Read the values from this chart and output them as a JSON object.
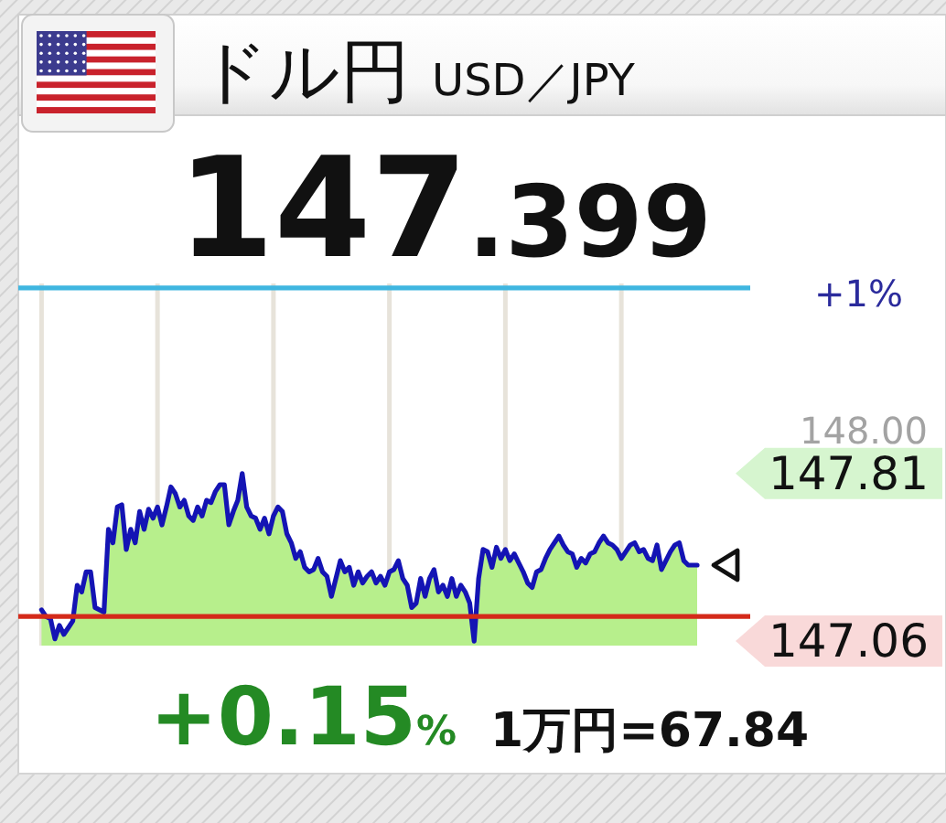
{
  "chart_data": {
    "type": "area",
    "title": "ドル円",
    "subtitle": "USD／JPY",
    "categories": [
      null,
      null,
      null,
      null,
      null,
      null,
      null,
      null,
      null,
      null,
      null,
      null,
      null,
      null,
      null,
      null,
      null,
      null,
      null,
      null,
      null,
      null,
      null,
      null,
      null,
      null,
      null,
      null,
      null,
      null,
      null,
      null,
      null,
      null,
      null,
      null,
      null,
      null,
      null,
      null,
      null,
      null,
      null,
      null,
      null,
      null,
      null,
      null,
      null,
      null,
      null,
      null,
      null,
      null,
      null,
      null,
      null,
      null,
      null,
      null,
      null,
      null,
      null,
      null,
      null,
      null,
      null,
      null,
      null,
      null,
      null,
      null,
      null,
      null,
      null,
      null,
      null,
      null,
      null,
      null,
      null,
      null,
      null,
      null,
      null,
      null,
      null,
      null,
      null,
      null,
      null,
      null,
      null,
      null,
      null,
      null,
      null,
      null,
      null,
      null,
      null,
      null,
      null,
      null,
      null,
      null,
      null,
      null,
      null,
      null,
      null,
      null,
      null,
      null,
      null,
      null,
      null,
      null,
      null,
      null,
      null,
      null,
      null,
      null,
      null,
      null,
      null,
      null,
      null,
      null,
      null,
      null,
      null,
      null,
      null,
      null,
      null,
      null,
      null,
      null,
      null,
      null,
      null,
      null,
      null,
      null,
      null,
      null
    ],
    "series": [
      {
        "color": "#b7ef8c",
        "values": [
          147.2,
          147.17,
          147.16,
          147.07,
          147.13,
          147.09,
          147.12,
          147.15,
          147.31,
          147.28,
          147.37,
          147.37,
          147.21,
          147.2,
          147.19,
          147.56,
          147.5,
          147.66,
          147.67,
          147.47,
          147.56,
          147.5,
          147.64,
          147.56,
          147.65,
          147.61,
          147.66,
          147.58,
          147.66,
          147.75,
          147.72,
          147.66,
          147.69,
          147.62,
          147.6,
          147.66,
          147.62,
          147.69,
          147.68,
          147.73,
          147.76,
          147.76,
          147.58,
          147.64,
          147.69,
          147.81,
          147.66,
          147.62,
          147.61,
          147.56,
          147.61,
          147.54,
          147.62,
          147.66,
          147.64,
          147.54,
          147.5,
          147.43,
          147.46,
          147.39,
          147.37,
          147.38,
          147.43,
          147.37,
          147.35,
          147.26,
          147.34,
          147.42,
          147.37,
          147.39,
          147.31,
          147.37,
          147.32,
          147.35,
          147.37,
          147.32,
          147.35,
          147.31,
          147.37,
          147.38,
          147.42,
          147.34,
          147.31,
          147.21,
          147.23,
          147.34,
          147.26,
          147.34,
          147.38,
          147.28,
          147.31,
          147.26,
          147.34,
          147.26,
          147.31,
          147.28,
          147.23,
          147.06,
          147.34,
          147.47,
          147.46,
          147.39,
          147.48,
          147.43,
          147.47,
          147.42,
          147.45,
          147.41,
          147.37,
          147.32,
          147.3,
          147.37,
          147.38,
          147.43,
          147.47,
          147.5,
          147.53,
          147.49,
          147.46,
          147.45,
          147.39,
          147.43,
          147.41,
          147.45,
          147.46,
          147.5,
          147.53,
          147.5,
          147.49,
          147.47,
          147.43,
          147.46,
          147.49,
          147.5,
          147.46,
          147.47,
          147.43,
          147.42,
          147.49,
          147.38,
          147.42,
          147.46,
          147.49,
          147.5,
          147.42,
          147.4,
          147.4,
          147.4
        ]
      },
      {
        "type": "line",
        "color": "#1414b4",
        "values": [
          147.2,
          147.17,
          147.16,
          147.07,
          147.13,
          147.09,
          147.12,
          147.15,
          147.31,
          147.28,
          147.37,
          147.37,
          147.21,
          147.2,
          147.19,
          147.56,
          147.5,
          147.66,
          147.67,
          147.47,
          147.56,
          147.5,
          147.64,
          147.56,
          147.65,
          147.61,
          147.66,
          147.58,
          147.66,
          147.75,
          147.72,
          147.66,
          147.69,
          147.62,
          147.6,
          147.66,
          147.62,
          147.69,
          147.68,
          147.73,
          147.76,
          147.76,
          147.58,
          147.64,
          147.69,
          147.81,
          147.66,
          147.62,
          147.61,
          147.56,
          147.61,
          147.54,
          147.62,
          147.66,
          147.64,
          147.54,
          147.5,
          147.43,
          147.46,
          147.39,
          147.37,
          147.38,
          147.43,
          147.37,
          147.35,
          147.26,
          147.34,
          147.42,
          147.37,
          147.39,
          147.31,
          147.37,
          147.32,
          147.35,
          147.37,
          147.32,
          147.35,
          147.31,
          147.37,
          147.38,
          147.42,
          147.34,
          147.31,
          147.21,
          147.23,
          147.34,
          147.26,
          147.34,
          147.38,
          147.28,
          147.31,
          147.26,
          147.34,
          147.26,
          147.31,
          147.28,
          147.23,
          147.06,
          147.34,
          147.47,
          147.46,
          147.39,
          147.48,
          147.43,
          147.47,
          147.42,
          147.45,
          147.41,
          147.37,
          147.32,
          147.3,
          147.37,
          147.38,
          147.43,
          147.47,
          147.5,
          147.53,
          147.49,
          147.46,
          147.45,
          147.39,
          147.43,
          147.41,
          147.45,
          147.46,
          147.5,
          147.53,
          147.5,
          147.49,
          147.47,
          147.43,
          147.46,
          147.49,
          147.5,
          147.46,
          147.47,
          147.43,
          147.42,
          147.49,
          147.38,
          147.42,
          147.46,
          147.49,
          147.5,
          147.42,
          147.4,
          147.4,
          147.4
        ]
      }
    ],
    "ylim": [
      147.04,
      148.66
    ],
    "yticks": [
      {
        "value": 147.06,
        "label": "147.06"
      },
      {
        "value": 147.81,
        "label": "147.81"
      },
      {
        "value": 148,
        "label": "148.00"
      }
    ],
    "tick_labels": "y",
    "grid": "x",
    "ref_lines": [
      {
        "axis": "y",
        "value": 148.64,
        "color": "#3fb6e0"
      },
      {
        "axis": "y",
        "value": 147.17,
        "color": "#d42a1a"
      }
    ],
    "annotations": [
      "147.399",
      "+1%",
      "+0.15%",
      "1万円=67.84"
    ]
  }
}
